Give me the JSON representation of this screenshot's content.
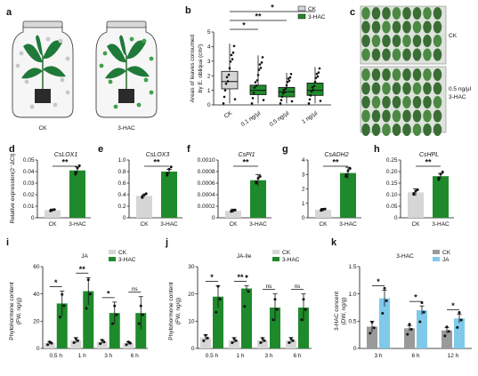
{
  "panels": {
    "a": {
      "letter": "a",
      "labels": [
        "CK",
        "3-HAC"
      ]
    },
    "b": {
      "letter": "b",
      "ylabel": [
        "Areas of leaves consumed",
        "by E. obliqua (cm²)"
      ],
      "yticks": [
        "0",
        "1",
        "2",
        "3",
        "4",
        "5"
      ],
      "categories": [
        "CK",
        "0.1 ng/µl",
        "0.5 ng/µl",
        "1 ng/µl"
      ],
      "legend": [
        "CK",
        "3-HAC"
      ],
      "sig": [
        "*",
        "**",
        "*"
      ]
    },
    "c": {
      "letter": "c",
      "labels": [
        "CK",
        "0.5 ng/µl",
        "3-HAC"
      ]
    },
    "d": {
      "letter": "d",
      "gene": "CsLOX1",
      "ylabel": "Relative expression(2⁻ΔCt)",
      "yticks": [
        "0",
        "0.01",
        "0.02",
        "0.03",
        "0.04",
        "0.05"
      ],
      "cats": [
        "CK",
        "3-HAC"
      ],
      "sig": "**"
    },
    "e": {
      "letter": "e",
      "gene": "CsLOX3",
      "yticks": [
        "0",
        "0.2",
        "0.4",
        "0.6",
        "0.8",
        "1.0"
      ],
      "cats": [
        "CK",
        "3-HAC"
      ],
      "sig": "**"
    },
    "f": {
      "letter": "f",
      "gene": "CsPI1",
      "yticks": [
        "0",
        "0.0002",
        "0.0004",
        "0.0006",
        "0.0008",
        "0.0010"
      ],
      "cats": [
        "CK",
        "3-HAC"
      ],
      "sig": "**"
    },
    "g": {
      "letter": "g",
      "gene": "CsADH2",
      "yticks": [
        "0",
        "1",
        "2",
        "3",
        "4"
      ],
      "cats": [
        "CK",
        "3-HAC"
      ],
      "sig": "**"
    },
    "h": {
      "letter": "h",
      "gene": "CsHPL",
      "yticks": [
        "0",
        "0.05",
        "0.10",
        "0.15",
        "0.20",
        "0.25"
      ],
      "cats": [
        "CK",
        "3-HAC"
      ],
      "sig": "**"
    },
    "i": {
      "letter": "i",
      "title": "JA",
      "ylabel": [
        "Phytohormone content",
        "(FW, ng/g)"
      ],
      "yticks": [
        "0",
        "20",
        "40",
        "60"
      ],
      "cats": [
        "0.5 h",
        "1 h",
        "3 h",
        "6 h"
      ],
      "legend": [
        "CK",
        "3-HAC"
      ],
      "sig": [
        "*",
        "**",
        "*",
        "ns"
      ]
    },
    "j": {
      "letter": "j",
      "title": "JA-Ile",
      "ylabel": [
        "Phytohormone content",
        "(FW, ng/g)"
      ],
      "yticks": [
        "0",
        "10",
        "20",
        "30"
      ],
      "cats": [
        "0.5 h",
        "1 h",
        "3 h",
        "6 h"
      ],
      "legend": [
        "CK",
        "3-HAC"
      ],
      "sig": [
        "*",
        "**",
        "ns",
        "ns"
      ]
    },
    "k": {
      "letter": "k",
      "title": "3-HAC",
      "ylabel": [
        "3-HAC concent",
        "(DW, ng/g)"
      ],
      "yticks": [
        "0",
        "0.5",
        "1.0",
        "1.5"
      ],
      "cats": [
        "3 h",
        "6 h",
        "12 h"
      ],
      "legend": [
        "CK",
        "JA"
      ],
      "sig": [
        "*",
        "*",
        "*"
      ]
    }
  },
  "colors": {
    "green": "#1f8a2b",
    "gray": "#d6d6d6",
    "dgray": "#9a9a9a",
    "blue": "#7fc9ea",
    "leaf": "#3e7a3a"
  },
  "chart_data": [
    {
      "type": "box",
      "panel": "b",
      "categories": [
        "CK",
        "0.1 ng/µl",
        "0.5 ng/µl",
        "1 ng/µl"
      ],
      "median": [
        1.6,
        1.0,
        0.9,
        1.0
      ],
      "q1": [
        1.1,
        0.7,
        0.55,
        0.65
      ],
      "q3": [
        2.3,
        1.35,
        1.2,
        1.5
      ],
      "min": [
        0.1,
        0.1,
        0.1,
        0.1
      ],
      "max": [
        4.2,
        3.4,
        2.2,
        2.6
      ],
      "ylim": [
        0,
        5
      ]
    },
    {
      "type": "bar",
      "panel": "d",
      "categories": [
        "CK",
        "3-HAC"
      ],
      "values": [
        0.0065,
        0.041
      ],
      "errors": [
        0.001,
        0.003
      ],
      "ylim": [
        0,
        0.05
      ]
    },
    {
      "type": "bar",
      "panel": "e",
      "categories": [
        "CK",
        "3-HAC"
      ],
      "values": [
        0.38,
        0.8
      ],
      "errors": [
        0.02,
        0.04
      ],
      "ylim": [
        0,
        1.0
      ]
    },
    {
      "type": "bar",
      "panel": "f",
      "categories": [
        "CK",
        "3-HAC"
      ],
      "values": [
        0.00012,
        0.00065
      ],
      "errors": [
        3e-05,
        0.0001
      ],
      "ylim": [
        0,
        0.001
      ]
    },
    {
      "type": "bar",
      "panel": "g",
      "categories": [
        "CK",
        "3-HAC"
      ],
      "values": [
        0.55,
        3.1
      ],
      "errors": [
        0.1,
        0.4
      ],
      "ylim": [
        0,
        4
      ]
    },
    {
      "type": "bar",
      "panel": "h",
      "categories": [
        "CK",
        "3-HAC"
      ],
      "values": [
        0.11,
        0.18
      ],
      "errors": [
        0.015,
        0.012
      ],
      "ylim": [
        0,
        0.25
      ]
    },
    {
      "type": "bar",
      "panel": "i",
      "categories": [
        "0.5 h",
        "1 h",
        "3 h",
        "6 h"
      ],
      "series": [
        {
          "name": "CK",
          "values": [
            4,
            6,
            5,
            4
          ]
        },
        {
          "name": "3-HAC",
          "values": [
            33,
            42,
            26,
            26
          ]
        }
      ],
      "errors": [
        [
          1,
          2,
          1.5,
          1
        ],
        [
          9,
          10,
          8,
          12
        ]
      ],
      "ylim": [
        0,
        60
      ]
    },
    {
      "type": "bar",
      "panel": "j",
      "categories": [
        "0.5 h",
        "1 h",
        "3 h",
        "6 h"
      ],
      "series": [
        {
          "name": "CK",
          "values": [
            4,
            3,
            3,
            3
          ]
        },
        {
          "name": "3-HAC",
          "values": [
            19,
            22,
            15,
            15
          ]
        }
      ],
      "errors": [
        [
          1,
          1,
          1,
          1
        ],
        [
          4,
          1,
          5,
          5
        ]
      ],
      "ylim": [
        0,
        30
      ]
    },
    {
      "type": "bar",
      "panel": "k",
      "categories": [
        "3 h",
        "6 h",
        "12 h"
      ],
      "series": [
        {
          "name": "CK",
          "values": [
            0.4,
            0.37,
            0.33
          ]
        },
        {
          "name": "JA",
          "values": [
            0.92,
            0.7,
            0.55
          ]
        }
      ],
      "errors": [
        [
          0.1,
          0.05,
          0.05
        ],
        [
          0.15,
          0.08,
          0.08
        ]
      ],
      "ylim": [
        0,
        1.5
      ]
    }
  ]
}
